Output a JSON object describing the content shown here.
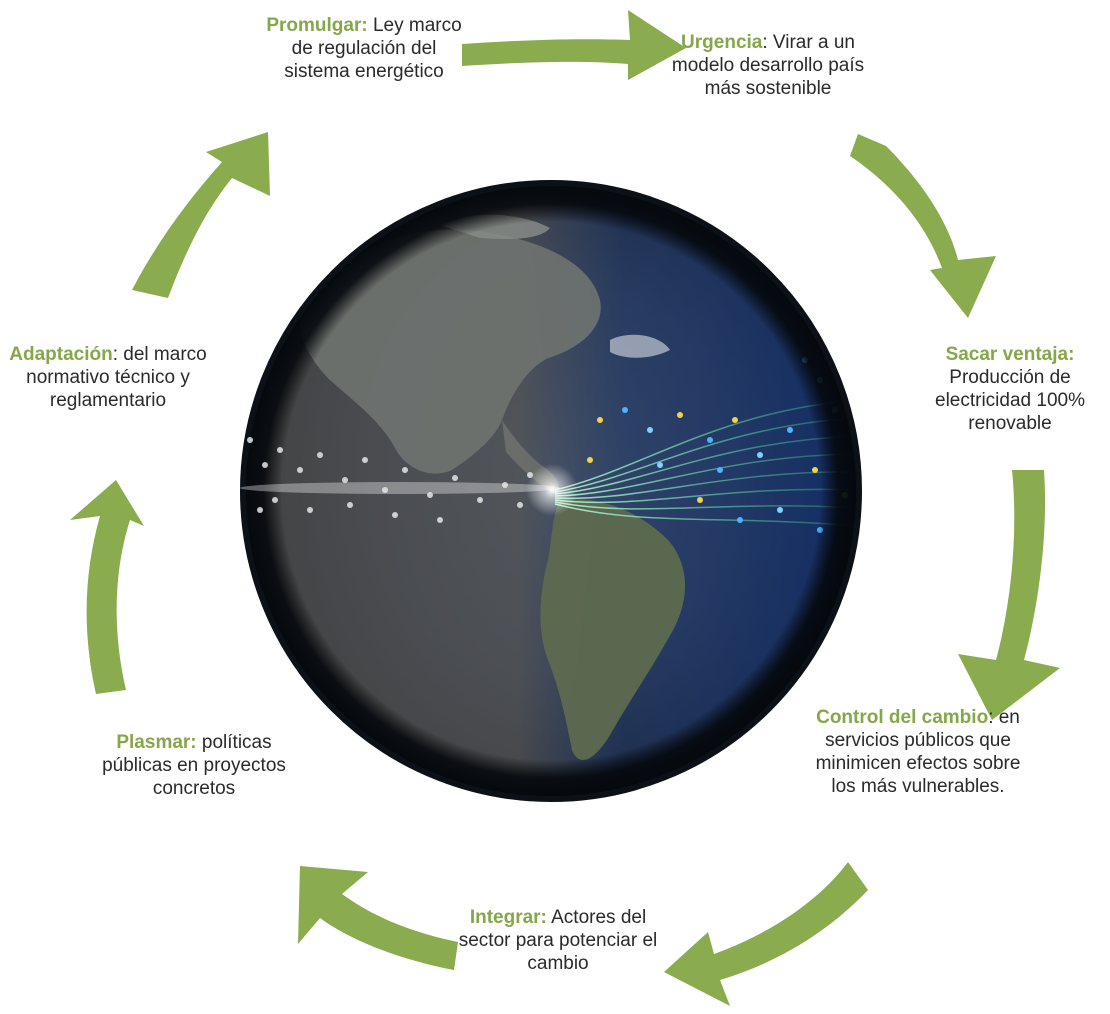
{
  "colors": {
    "arrow": "#8aab4e",
    "key_text": "#86a64a",
    "body_text": "#2a2a2a"
  },
  "globe": {
    "image": "earth-globe-americas-energy-streams"
  },
  "steps": [
    {
      "key": "Promulgar:",
      "text": "Ley marco de regulación del sistema energético"
    },
    {
      "key": "Urgencia",
      "text": ": Virar a un modelo desarrollo país más sostenible"
    },
    {
      "key": "Sacar ventaja:",
      "text": "Producción de electricidad 100% renovable"
    },
    {
      "key": "Control del cambio",
      "text": ": en servicios públicos que minimicen efectos sobre los más vulnerables."
    },
    {
      "key": "Integrar:",
      "text": "Actores del sector para potenciar el cambio"
    },
    {
      "key": "Plasmar:",
      "text": "políticas públicas en proyectos concretos"
    },
    {
      "key": "Adaptación",
      "text": ": del marco normativo técnico y reglamentario"
    }
  ]
}
